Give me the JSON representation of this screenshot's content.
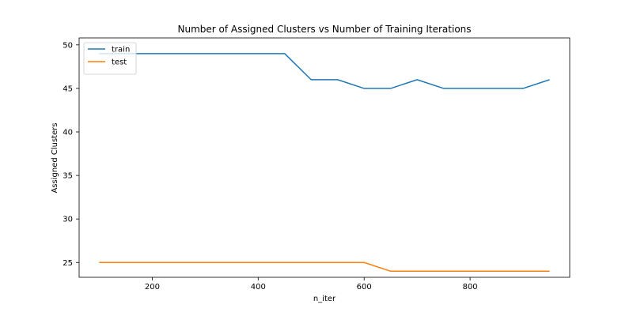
{
  "chart_data": {
    "type": "line",
    "title": "Number of Assigned Clusters vs Number of Training Iterations",
    "xlabel": "n_iter",
    "ylabel": "Assigned Clusters",
    "xlim": [
      62,
      988
    ],
    "ylim": [
      23.3,
      50.8
    ],
    "xticks": [
      200,
      400,
      600,
      800
    ],
    "yticks": [
      25,
      30,
      35,
      40,
      45,
      50
    ],
    "grid": false,
    "legend_position": "top-left",
    "x": [
      100,
      150,
      200,
      250,
      300,
      350,
      400,
      450,
      500,
      550,
      600,
      650,
      700,
      750,
      800,
      850,
      900,
      950
    ],
    "series": [
      {
        "name": "train",
        "color": "#1f77b4",
        "values": [
          49,
          49,
          49,
          49,
          49,
          49,
          49,
          49,
          46,
          46,
          45,
          45,
          46,
          45,
          45,
          45,
          45,
          46
        ]
      },
      {
        "name": "test",
        "color": "#ff7f0e",
        "values": [
          25,
          25,
          25,
          25,
          25,
          25,
          25,
          25,
          25,
          25,
          25,
          24,
          24,
          24,
          24,
          24,
          24,
          24
        ]
      }
    ]
  }
}
